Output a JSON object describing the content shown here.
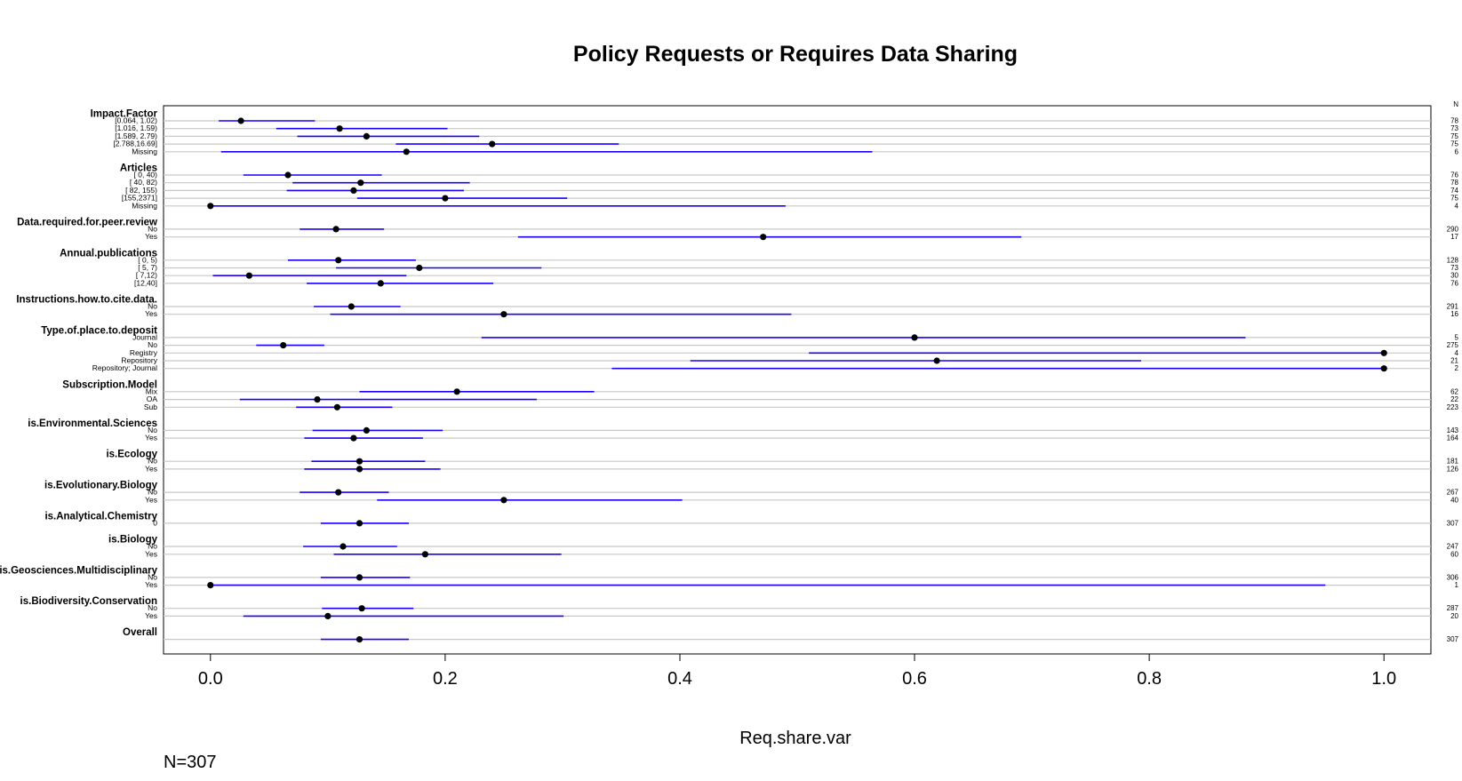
{
  "chart_data": {
    "type": "dot",
    "title": "Policy Requests or Requires Data Sharing",
    "xlabel": "Req.share.var",
    "footnote": "N=307",
    "n_header": "N",
    "xlim": [
      -0.04,
      1.04
    ],
    "xticks": [
      0.0,
      0.2,
      0.4,
      0.6,
      0.8,
      1.0
    ],
    "xtick_labels": [
      "0.0",
      "0.2",
      "0.4",
      "0.6",
      "0.8",
      "1.0"
    ],
    "colors": {
      "interval": "#1a00ff",
      "point": "#000000",
      "rule": "#c8c8c8",
      "frame": "#000000"
    },
    "groups": [
      {
        "name": "Impact.Factor",
        "rows": [
          {
            "label": "[0.064, 1.02)",
            "value": 0.026,
            "lower": 0.007,
            "upper": 0.089,
            "n": 78
          },
          {
            "label": "[1.016, 1.59)",
            "value": 0.11,
            "lower": 0.056,
            "upper": 0.202,
            "n": 73
          },
          {
            "label": "[1.589, 2.79)",
            "value": 0.133,
            "lower": 0.074,
            "upper": 0.229,
            "n": 75
          },
          {
            "label": "[2.788,16.69]",
            "value": 0.24,
            "lower": 0.158,
            "upper": 0.348,
            "n": 75
          },
          {
            "label": "Missing",
            "value": 0.167,
            "lower": 0.009,
            "upper": 0.564,
            "n": 6
          }
        ]
      },
      {
        "name": "Articles",
        "rows": [
          {
            "label": "[ 0,  40)",
            "value": 0.066,
            "lower": 0.028,
            "upper": 0.146,
            "n": 76
          },
          {
            "label": "[ 40,  82)",
            "value": 0.128,
            "lower": 0.07,
            "upper": 0.221,
            "n": 78
          },
          {
            "label": "[ 82, 155)",
            "value": 0.122,
            "lower": 0.065,
            "upper": 0.216,
            "n": 74
          },
          {
            "label": "[155,2371]",
            "value": 0.2,
            "lower": 0.125,
            "upper": 0.304,
            "n": 75
          },
          {
            "label": "Missing",
            "value": 0.0,
            "lower": 0.0,
            "upper": 0.49,
            "n": 4
          }
        ]
      },
      {
        "name": "Data.required.for.peer.review",
        "rows": [
          {
            "label": "No",
            "value": 0.107,
            "lower": 0.076,
            "upper": 0.148,
            "n": 290
          },
          {
            "label": "Yes",
            "value": 0.471,
            "lower": 0.262,
            "upper": 0.691,
            "n": 17
          }
        ]
      },
      {
        "name": "Annual.publications",
        "rows": [
          {
            "label": "[ 0, 5)",
            "value": 0.109,
            "lower": 0.066,
            "upper": 0.175,
            "n": 128
          },
          {
            "label": "[ 5, 7)",
            "value": 0.178,
            "lower": 0.107,
            "upper": 0.282,
            "n": 73
          },
          {
            "label": "[ 7,12)",
            "value": 0.033,
            "lower": 0.002,
            "upper": 0.167,
            "n": 30
          },
          {
            "label": "[12,40]",
            "value": 0.145,
            "lower": 0.082,
            "upper": 0.241,
            "n": 76
          }
        ]
      },
      {
        "name": "Instructions.how.to.cite.data.",
        "rows": [
          {
            "label": "No",
            "value": 0.12,
            "lower": 0.088,
            "upper": 0.162,
            "n": 291
          },
          {
            "label": "Yes",
            "value": 0.25,
            "lower": 0.102,
            "upper": 0.495,
            "n": 16
          }
        ]
      },
      {
        "name": "Type.of.place.to.deposit",
        "rows": [
          {
            "label": "Journal",
            "value": 0.6,
            "lower": 0.231,
            "upper": 0.882,
            "n": 5
          },
          {
            "label": "No",
            "value": 0.062,
            "lower": 0.039,
            "upper": 0.097,
            "n": 275
          },
          {
            "label": "Registry",
            "value": 1.0,
            "lower": 0.51,
            "upper": 1.0,
            "n": 4
          },
          {
            "label": "Repository",
            "value": 0.619,
            "lower": 0.409,
            "upper": 0.793,
            "n": 21
          },
          {
            "label": "Repository; Journal",
            "value": 1.0,
            "lower": 0.342,
            "upper": 1.0,
            "n": 2
          }
        ]
      },
      {
        "name": "Subscription.Model",
        "rows": [
          {
            "label": "Mix",
            "value": 0.21,
            "lower": 0.127,
            "upper": 0.327,
            "n": 62
          },
          {
            "label": "OA",
            "value": 0.091,
            "lower": 0.025,
            "upper": 0.278,
            "n": 22
          },
          {
            "label": "Sub",
            "value": 0.108,
            "lower": 0.073,
            "upper": 0.155,
            "n": 223
          }
        ]
      },
      {
        "name": "is.Environmental.Sciences",
        "rows": [
          {
            "label": "No",
            "value": 0.133,
            "lower": 0.087,
            "upper": 0.198,
            "n": 143
          },
          {
            "label": "Yes",
            "value": 0.122,
            "lower": 0.08,
            "upper": 0.181,
            "n": 164
          }
        ]
      },
      {
        "name": "is.Ecology",
        "rows": [
          {
            "label": "No",
            "value": 0.127,
            "lower": 0.086,
            "upper": 0.183,
            "n": 181
          },
          {
            "label": "Yes",
            "value": 0.127,
            "lower": 0.08,
            "upper": 0.196,
            "n": 126
          }
        ]
      },
      {
        "name": "is.Evolutionary.Biology",
        "rows": [
          {
            "label": "No",
            "value": 0.109,
            "lower": 0.076,
            "upper": 0.152,
            "n": 267
          },
          {
            "label": "Yes",
            "value": 0.25,
            "lower": 0.142,
            "upper": 0.402,
            "n": 40
          }
        ]
      },
      {
        "name": "is.Analytical.Chemistry",
        "rows": [
          {
            "label": "0",
            "value": 0.127,
            "lower": 0.094,
            "upper": 0.169,
            "n": 307
          }
        ]
      },
      {
        "name": "is.Biology",
        "rows": [
          {
            "label": "No",
            "value": 0.113,
            "lower": 0.079,
            "upper": 0.159,
            "n": 247
          },
          {
            "label": "Yes",
            "value": 0.183,
            "lower": 0.105,
            "upper": 0.299,
            "n": 60
          }
        ]
      },
      {
        "name": "is.Geosciences.Multidisciplinary",
        "rows": [
          {
            "label": "No",
            "value": 0.127,
            "lower": 0.094,
            "upper": 0.17,
            "n": 306
          },
          {
            "label": "Yes",
            "value": 0.0,
            "lower": 0.0,
            "upper": 0.95,
            "n": 1
          }
        ]
      },
      {
        "name": "is.Biodiversity.Conservation",
        "rows": [
          {
            "label": "No",
            "value": 0.129,
            "lower": 0.095,
            "upper": 0.173,
            "n": 287
          },
          {
            "label": "Yes",
            "value": 0.1,
            "lower": 0.028,
            "upper": 0.301,
            "n": 20
          }
        ]
      },
      {
        "name": "Overall",
        "rows": [
          {
            "label": "",
            "value": 0.127,
            "lower": 0.094,
            "upper": 0.169,
            "n": 307
          }
        ]
      }
    ]
  }
}
